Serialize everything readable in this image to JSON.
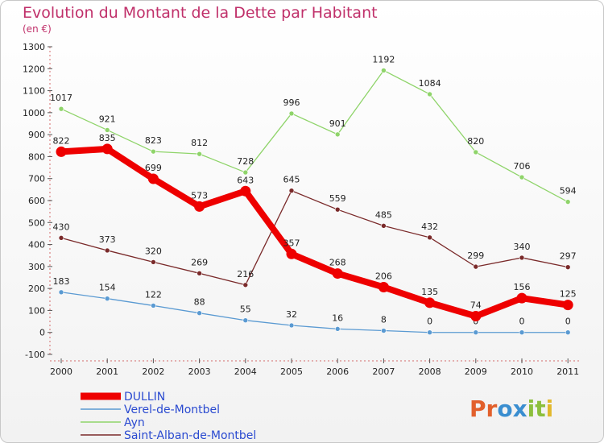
{
  "chart_data": {
    "type": "line",
    "title": "Evolution du Montant de la Dette par Habitant",
    "subtitle": "(en €)",
    "x": [
      "2000",
      "2001",
      "2002",
      "2003",
      "2004",
      "2005",
      "2006",
      "2007",
      "2008",
      "2009",
      "2010",
      "2011"
    ],
    "ylim": [
      -100,
      1300
    ],
    "yticks": [
      -100,
      0,
      100,
      200,
      300,
      400,
      500,
      600,
      700,
      800,
      900,
      1000,
      1100,
      1200,
      1300
    ],
    "grid": false,
    "legend_position": "bottom-left",
    "series": [
      {
        "name": "DULLIN",
        "color": "#ee0000",
        "values": [
          822,
          835,
          699,
          573,
          643,
          357,
          268,
          206,
          135,
          74,
          156,
          125
        ],
        "labels": [
          "822",
          "835",
          "699",
          "573",
          "643",
          "357",
          "268",
          "206",
          "135",
          "74",
          "156",
          "125"
        ]
      },
      {
        "name": "Verel-de-Montbel",
        "color": "#5a9ad2",
        "values": [
          183,
          154,
          122,
          88,
          55,
          32,
          16,
          8,
          0,
          0,
          0,
          0
        ],
        "labels": [
          "183",
          "154",
          "122",
          "88",
          "55",
          "32",
          "16",
          "8",
          "0",
          "0",
          "0",
          "0"
        ]
      },
      {
        "name": "Ayn",
        "color": "#8fd46a",
        "values": [
          1017,
          921,
          823,
          812,
          728,
          996,
          901,
          1192,
          1084,
          820,
          706,
          594
        ],
        "labels": [
          "1017",
          "921",
          "823",
          "812",
          "728",
          "996",
          "901",
          "1192",
          "1084",
          "820",
          "706",
          "594"
        ]
      },
      {
        "name": "Saint-Alban-de-Montbel",
        "color": "#7a2a2a",
        "values": [
          430,
          373,
          320,
          269,
          216,
          645,
          559,
          485,
          432,
          299,
          340,
          297
        ],
        "labels": [
          "430",
          "373",
          "320",
          "269",
          "216",
          "645",
          "559",
          "485",
          "432",
          "299",
          "340",
          "297"
        ]
      }
    ]
  },
  "logo": {
    "text": "Proxiti",
    "letters": [
      "P",
      "r",
      "o",
      "x",
      "i",
      "t",
      "i"
    ],
    "colors": [
      "#e2602c",
      "#e2602c",
      "#3a8ed0",
      "#3a8ed0",
      "#8cbf3c",
      "#8cbf3c",
      "#e2b82c"
    ]
  }
}
